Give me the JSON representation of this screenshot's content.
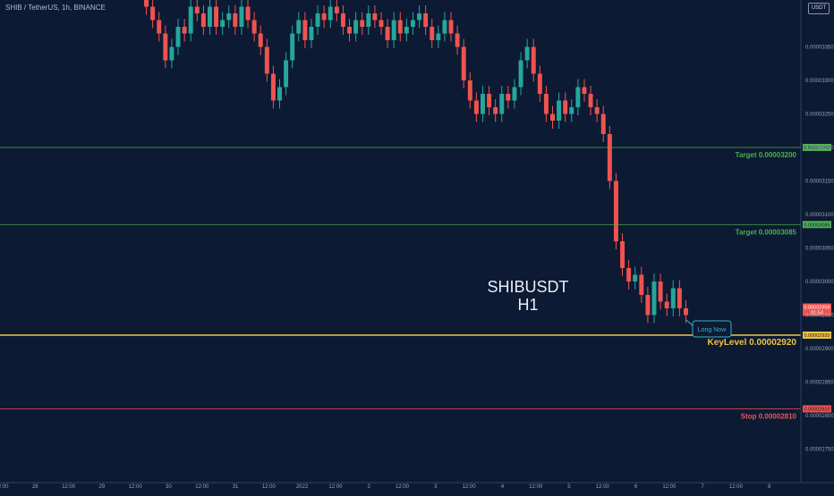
{
  "header": {
    "symbol_line": "SHIB / TetherUS, 1h, BINANCE",
    "currency_badge": "USDT"
  },
  "annotation": {
    "title": "SHIBUSDT",
    "subtitle": "H1",
    "callout": "Long Now"
  },
  "colors": {
    "background": "#0c1a33",
    "up_candle": "#26a69a",
    "down_candle": "#ef5350",
    "target_line": "#4caf50",
    "key_level_line": "#f0c43c",
    "stop_line": "#ef5350",
    "callout_border": "#3ab0c8",
    "axis_text": "#9aa3b5"
  },
  "chart_data": {
    "type": "candlestick",
    "title": "SHIB / TetherUS, 1h, BINANCE",
    "ylim": [
      2.7e-05,
      3.42e-05
    ],
    "y_ticks": [
      "0.00003350",
      "0.00003300",
      "0.00003250",
      "0.00003200",
      "0.00003150",
      "0.00003100",
      "0.00003050",
      "0.00003000",
      "0.00002950",
      "0.00002900",
      "0.00002850",
      "0.00002800",
      "0.00002750"
    ],
    "x_ticks": [
      "12:00",
      "28",
      "12:00",
      "29",
      "12:00",
      "30",
      "12:00",
      "31",
      "12:00",
      "2022",
      "12:00",
      "2",
      "12:00",
      "3",
      "12:00",
      "4",
      "12:00",
      "5",
      "12:00",
      "6",
      "12:00",
      "7",
      "12:00",
      "8"
    ],
    "levels": [
      {
        "label": "Target 0.00003200",
        "price": 3.2e-05,
        "axis_label": "0.00003200",
        "kind": "target"
      },
      {
        "label": "Target 0.00003085",
        "price": 3.085e-05,
        "axis_label": "0.00003085",
        "kind": "target"
      },
      {
        "label": "KeyLevel 0.00002920",
        "price": 2.92e-05,
        "axis_label": "0.00002920",
        "kind": "key"
      },
      {
        "label": "Stop 0.00002810",
        "price": 2.81e-05,
        "axis_label": "0.00002810",
        "kind": "stop"
      }
    ],
    "last_price": {
      "label": "0.00002958",
      "countdown": "01:54",
      "price": 2.958e-05
    },
    "candles_close": [
      3.41e-05,
      3.39e-05,
      3.37e-05,
      3.33e-05,
      3.35e-05,
      3.38e-05,
      3.37e-05,
      3.41e-05,
      3.4e-05,
      3.38e-05,
      3.41e-05,
      3.38e-05,
      3.39e-05,
      3.4e-05,
      3.38e-05,
      3.41e-05,
      3.39e-05,
      3.37e-05,
      3.35e-05,
      3.31e-05,
      3.27e-05,
      3.29e-05,
      3.33e-05,
      3.37e-05,
      3.39e-05,
      3.36e-05,
      3.38e-05,
      3.4e-05,
      3.39e-05,
      3.41e-05,
      3.4e-05,
      3.38e-05,
      3.37e-05,
      3.39e-05,
      3.38e-05,
      3.4e-05,
      3.39e-05,
      3.38e-05,
      3.36e-05,
      3.39e-05,
      3.37e-05,
      3.38e-05,
      3.39e-05,
      3.4e-05,
      3.38e-05,
      3.36e-05,
      3.37e-05,
      3.39e-05,
      3.37e-05,
      3.35e-05,
      3.3e-05,
      3.27e-05,
      3.25e-05,
      3.28e-05,
      3.26e-05,
      3.25e-05,
      3.28e-05,
      3.27e-05,
      3.29e-05,
      3.33e-05,
      3.35e-05,
      3.31e-05,
      3.28e-05,
      3.25e-05,
      3.24e-05,
      3.27e-05,
      3.25e-05,
      3.26e-05,
      3.29e-05,
      3.28e-05,
      3.26e-05,
      3.25e-05,
      3.22e-05,
      3.15e-05,
      3.06e-05,
      3.02e-05,
      3e-05,
      3.01e-05,
      2.98e-05,
      2.95e-05,
      3e-05,
      2.97e-05,
      2.96e-05,
      2.99e-05,
      2.96e-05,
      2.95e-05
    ]
  }
}
